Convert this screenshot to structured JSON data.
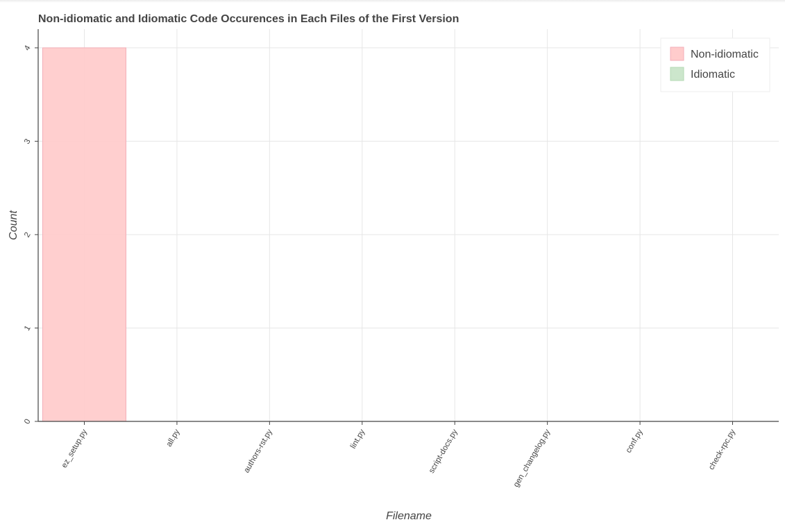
{
  "chart_data": {
    "type": "bar",
    "title": "Non-idiomatic and Idiomatic Code Occurences in Each Files of the First Version",
    "xlabel": "Filename",
    "ylabel": "Count",
    "categories": [
      "ez_setup.py",
      "all.py",
      "authors-rst.py",
      "lint.py",
      "script-docs.py",
      "gen_changelog.py",
      "conf.py",
      "check-rpc.py"
    ],
    "series": [
      {
        "name": "Non-idiomatic",
        "color": "#ffcccc",
        "stroke": "#f3aeb8",
        "values": [
          4,
          0,
          0,
          0,
          0,
          0,
          0,
          0
        ]
      },
      {
        "name": "Idiomatic",
        "color": "#cce6cc",
        "stroke": "#b3d9b3",
        "values": [
          0,
          0,
          0,
          0,
          0,
          0,
          0,
          0
        ]
      }
    ],
    "y_ticks": [
      "0",
      "1",
      "2",
      "3",
      "4"
    ],
    "ylim": [
      0,
      4.2
    ],
    "grid": true,
    "legend": {
      "position": "top-right"
    }
  }
}
